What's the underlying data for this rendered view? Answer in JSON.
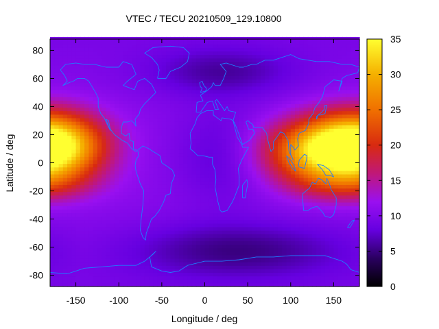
{
  "chart_data": {
    "type": "heatmap",
    "title": "VTEC / TECU 20210509_129.10800",
    "xlabel": "Longitude / deg",
    "ylabel": "Latitude / deg",
    "xlim": [
      -180,
      180
    ],
    "ylim": [
      -88,
      88
    ],
    "xticks": [
      -150,
      -100,
      -50,
      0,
      50,
      100,
      150
    ],
    "yticks": [
      -80,
      -60,
      -40,
      -20,
      0,
      20,
      40,
      60,
      80
    ],
    "colorbar": {
      "range": [
        0,
        35
      ],
      "ticks": [
        0,
        5,
        10,
        15,
        20,
        25,
        30,
        35
      ],
      "colormap": [
        {
          "v": 0,
          "color": "#000000"
        },
        {
          "v": 4,
          "color": "#2a0060"
        },
        {
          "v": 8,
          "color": "#6600e0"
        },
        {
          "v": 12,
          "color": "#9a10f0"
        },
        {
          "v": 16,
          "color": "#c01878"
        },
        {
          "v": 20,
          "color": "#d82a10"
        },
        {
          "v": 25,
          "color": "#f07000"
        },
        {
          "v": 30,
          "color": "#f5b000"
        },
        {
          "v": 35,
          "color": "#ffff30"
        }
      ]
    },
    "field": {
      "background_tecu": 9.5,
      "features": [
        {
          "name": "equatorial-anomaly-pacific-west",
          "lon": 180,
          "lat": 13,
          "peak_tecu": 33,
          "width_lon": 42,
          "width_lat": 16
        },
        {
          "name": "equatorial-anomaly-pacific-east",
          "lon": 135,
          "lat": 8,
          "peak_tecu": 26,
          "width_lon": 48,
          "width_lat": 15
        },
        {
          "name": "equatorial-anomaly-south-crest",
          "lon": 165,
          "lat": -15,
          "peak_tecu": 15,
          "width_lon": 45,
          "width_lat": 9
        },
        {
          "name": "north-polar-low",
          "lon": 20,
          "lat": 65,
          "peak_tecu": -4,
          "width_lon": 60,
          "width_lat": 12
        },
        {
          "name": "south-polar-low",
          "lon": 40,
          "lat": -62,
          "peak_tecu": -5,
          "width_lon": 90,
          "width_lat": 14
        },
        {
          "name": "africa-low",
          "lon": 20,
          "lat": 5,
          "peak_tecu": -3,
          "width_lon": 40,
          "width_lat": 25
        }
      ]
    },
    "coastline_color": "#1f7dff"
  }
}
